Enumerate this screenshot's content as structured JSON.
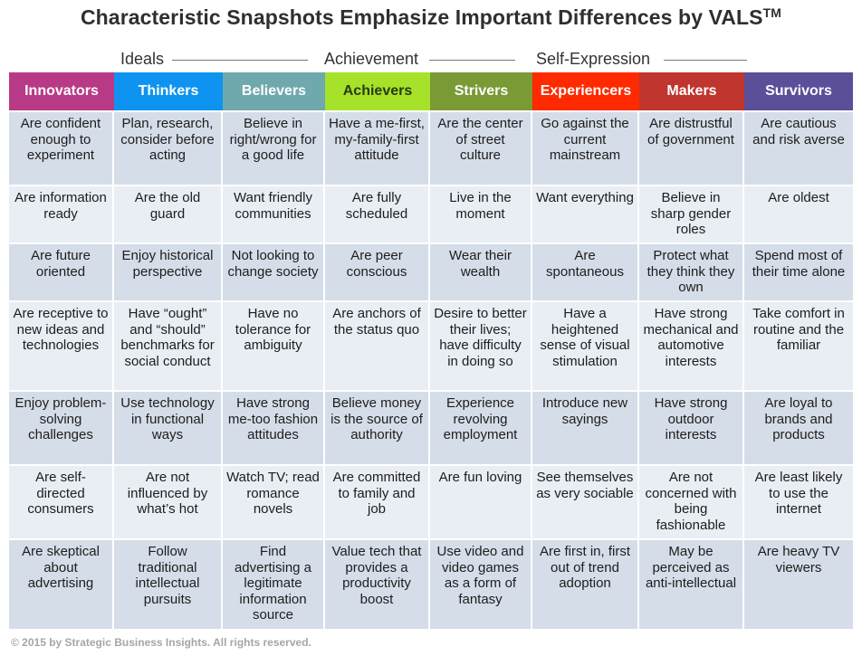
{
  "title": "Characteristic Snapshots Emphasize Important Differences by VALS",
  "trademark": "TM",
  "groups": [
    {
      "label": "Ideals"
    },
    {
      "label": "Achievement"
    },
    {
      "label": "Self-Expression"
    }
  ],
  "columns": [
    {
      "label": "Innovators",
      "color": "#b83a86",
      "text_color": "#ffffff"
    },
    {
      "label": "Thinkers",
      "color": "#0e94f0",
      "text_color": "#ffffff"
    },
    {
      "label": "Believers",
      "color": "#6fa8ad",
      "text_color": "#ffffff"
    },
    {
      "label": "Achievers",
      "color": "#a6e22a",
      "text_color": "#2a3a10"
    },
    {
      "label": "Strivers",
      "color": "#7a9a35",
      "text_color": "#ffffff"
    },
    {
      "label": "Experiencers",
      "color": "#ff2a00",
      "text_color": "#ffffff"
    },
    {
      "label": "Makers",
      "color": "#c0352d",
      "text_color": "#ffffff"
    },
    {
      "label": "Survivors",
      "color": "#5b4f9a",
      "text_color": "#ffffff"
    }
  ],
  "rows": [
    [
      "Are confident enough to experiment",
      "Plan, research, consider before acting",
      "Believe in right/wrong for a good life",
      "Have a me-first, my-family-first attitude",
      "Are the center of street culture",
      "Go against the current mainstream",
      "Are distrustful of government",
      "Are cautious and risk averse"
    ],
    [
      "Are information ready",
      "Are the old guard",
      "Want friendly communities",
      "Are fully scheduled",
      "Live in the moment",
      "Want everything",
      "Believe in sharp gender roles",
      "Are oldest"
    ],
    [
      "Are future oriented",
      "Enjoy historical perspective",
      "Not looking to change society",
      "Are peer conscious",
      "Wear their wealth",
      "Are spontaneous",
      "Protect what they think they own",
      "Spend most of their time alone"
    ],
    [
      "Are receptive to new ideas and technologies",
      "Have “ought” and “should” benchmarks for social conduct",
      "Have no tolerance for ambiguity",
      "Are anchors of the status quo",
      "Desire to better their lives; have difficulty in doing so",
      "Have a heightened sense of visual stimulation",
      "Have strong mechanical and automotive interests",
      "Take comfort in routine and the familiar"
    ],
    [
      "Enjoy problem-solving challenges",
      "Use technology in functional ways",
      "Have strong me-too fashion attitudes",
      "Believe money is the source of authority",
      "Experience revolving employment",
      "Introduce new sayings",
      "Have strong outdoor interests",
      "Are loyal to brands and products"
    ],
    [
      "Are self-directed consumers",
      "Are not influenced by what’s hot",
      "Watch TV; read romance novels",
      "Are committed to family and job",
      "Are fun loving",
      "See themselves as very sociable",
      "Are not concerned with being fashionable",
      "Are least likely to use the internet"
    ],
    [
      "Are skeptical about advertising",
      "Follow traditional intellectual pursuits",
      "Find advertising a legitimate information source",
      "Value tech that provides a productivity boost",
      "Use video and video games as a form of fantasy",
      "Are first in, first out of trend adoption",
      "May be perceived as anti-intellectual",
      "Are heavy TV viewers"
    ]
  ],
  "footer": "© 2015 by Strategic Business Insights. All rights reserved."
}
